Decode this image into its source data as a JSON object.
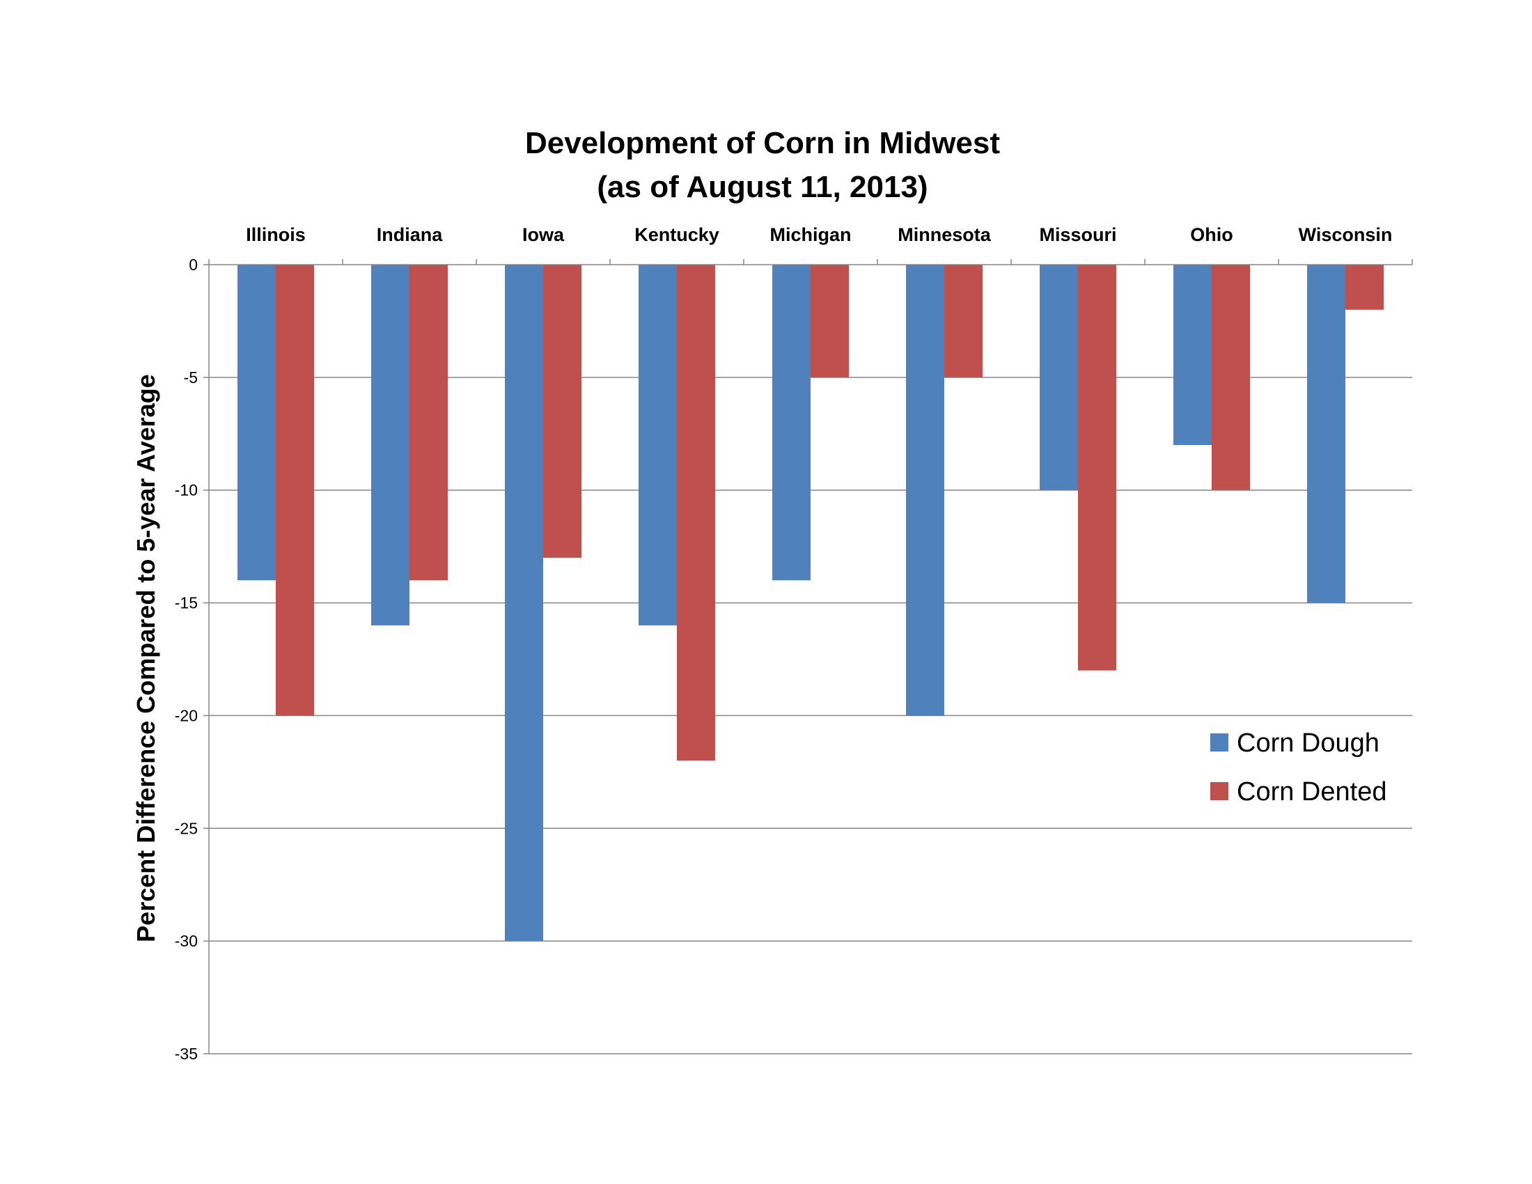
{
  "chart_data": {
    "type": "bar",
    "title_line1": "Development of Corn in Midwest",
    "title_line2": "(as of August 11, 2013)",
    "xlabel": "",
    "ylabel": "Percent Difference Compared to 5-year Average",
    "categories": [
      "Illinois",
      "Indiana",
      "Iowa",
      "Kentucky",
      "Michigan",
      "Minnesota",
      "Missouri",
      "Ohio",
      "Wisconsin"
    ],
    "series": [
      {
        "name": "Corn Dough",
        "color": "#4f81bd",
        "values": [
          -14,
          -16,
          -30,
          -16,
          -14,
          -20,
          -10,
          -8,
          -15
        ]
      },
      {
        "name": "Corn Dented",
        "color": "#c0504d",
        "values": [
          -20,
          -14,
          -13,
          -22,
          -5,
          -5,
          -18,
          -10,
          -2
        ]
      }
    ],
    "ylim": [
      -35,
      0
    ],
    "yticks": [
      0,
      -5,
      -10,
      -15,
      -20,
      -25,
      -30,
      -35
    ],
    "ytick_labels": [
      "0",
      "-5",
      "-10",
      "-15",
      "-20",
      "-25",
      "-30",
      "-35"
    ],
    "grid": true,
    "category_labels_position": "top",
    "legend_position": "lower-right"
  }
}
